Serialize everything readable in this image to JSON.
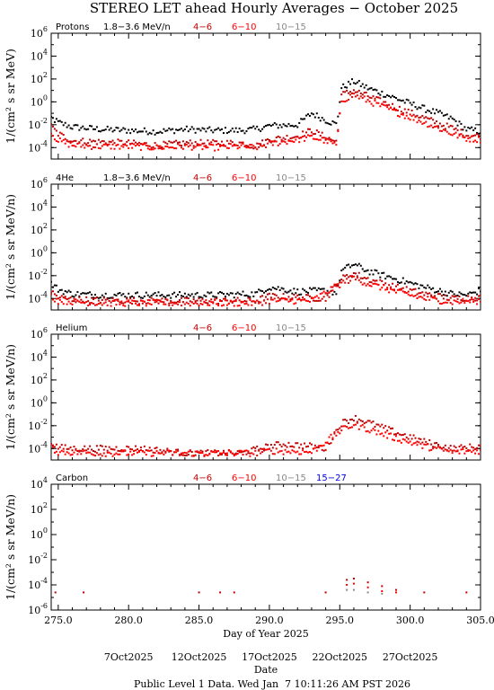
{
  "title": "STEREO LET ahead Hourly Averages − October 2025",
  "colors": {
    "c1": "#000000",
    "c2": "#c00000",
    "c3": "#ff0000",
    "c4": "#888888",
    "c5": "#0000dd"
  },
  "chart_data": [
    {
      "type": "scatter",
      "species": "Protons",
      "legend": [
        {
          "label": "1.8−3.6 MeV/n",
          "color": "#000000"
        },
        {
          "label": "4−6",
          "color": "#c00000"
        },
        {
          "label": "6−10",
          "color": "#ff0000"
        },
        {
          "label": "10−15",
          "color": "#888888"
        }
      ],
      "ylabel": "1/(cm² s sr MeV)",
      "ylim_log10": [
        -5,
        6
      ],
      "yticks": [
        {
          "e": "-4",
          "v": -4
        },
        {
          "e": "-2",
          "v": -2
        },
        {
          "e": "0",
          "v": 0
        },
        {
          "e": "2",
          "v": 2
        },
        {
          "e": "4",
          "v": 4
        },
        {
          "e": "6",
          "v": 6
        }
      ],
      "series": [
        {
          "key": "c1",
          "pts": [
            [
              274,
              -1.0
            ],
            [
              275,
              -1.8
            ],
            [
              276,
              -2.2
            ],
            [
              278,
              -2.4
            ],
            [
              280,
              -2.5
            ],
            [
              282,
              -2.6
            ],
            [
              284,
              -2.4
            ],
            [
              286,
              -2.5
            ],
            [
              288,
              -2.5
            ],
            [
              289,
              -2.4
            ],
            [
              290,
              -2.1
            ],
            [
              292,
              -2.0
            ],
            [
              293,
              -1.0
            ],
            [
              294,
              -1.6
            ],
            [
              294.8,
              -2.0
            ],
            [
              295.1,
              1.2
            ],
            [
              296,
              1.8
            ],
            [
              297,
              1.2
            ],
            [
              299,
              0.3
            ],
            [
              301,
              -0.6
            ],
            [
              302,
              -1.0
            ],
            [
              303,
              -1.5
            ],
            [
              304,
              -2.4
            ],
            [
              305,
              -2.6
            ]
          ]
        },
        {
          "key": "c2",
          "pts": [
            [
              274,
              -1.5
            ],
            [
              275,
              -2.8
            ],
            [
              276,
              -3.4
            ],
            [
              278,
              -3.5
            ],
            [
              280,
              -3.6
            ],
            [
              282,
              -3.8
            ],
            [
              284,
              -3.6
            ],
            [
              286,
              -3.6
            ],
            [
              288,
              -3.6
            ],
            [
              289,
              -3.9
            ],
            [
              290,
              -3.3
            ],
            [
              292,
              -3.0
            ],
            [
              293,
              -2.5
            ],
            [
              294,
              -3.1
            ],
            [
              294.8,
              -3.5
            ],
            [
              295.1,
              0.6
            ],
            [
              296,
              1.0
            ],
            [
              297,
              0.5
            ],
            [
              299,
              -0.5
            ],
            [
              301,
              -1.4
            ],
            [
              302,
              -1.9
            ],
            [
              303,
              -2.3
            ],
            [
              304,
              -2.9
            ],
            [
              305,
              -3.0
            ]
          ]
        },
        {
          "key": "c3",
          "pts": [
            [
              274,
              -2.0
            ],
            [
              275,
              -3.4
            ],
            [
              276,
              -3.8
            ],
            [
              278,
              -3.9
            ],
            [
              280,
              -3.9
            ],
            [
              282,
              -4.0
            ],
            [
              284,
              -3.9
            ],
            [
              286,
              -4.0
            ],
            [
              288,
              -3.9
            ],
            [
              289,
              -4.0
            ],
            [
              290,
              -3.7
            ],
            [
              292,
              -3.3
            ],
            [
              293,
              -3.1
            ],
            [
              294,
              -3.4
            ],
            [
              294.8,
              -3.8
            ],
            [
              295.1,
              0.1
            ],
            [
              296,
              0.6
            ],
            [
              297,
              0.1
            ],
            [
              299,
              -0.9
            ],
            [
              301,
              -1.8
            ],
            [
              302,
              -2.3
            ],
            [
              303,
              -2.8
            ],
            [
              304,
              -3.2
            ],
            [
              305,
              -3.3
            ]
          ]
        }
      ]
    },
    {
      "type": "scatter",
      "species": "4He",
      "legend": [
        {
          "label": "1.8−3.6 MeV/n",
          "color": "#000000"
        },
        {
          "label": "4−6",
          "color": "#c00000"
        },
        {
          "label": "6−10",
          "color": "#ff0000"
        },
        {
          "label": "10−15",
          "color": "#888888"
        }
      ],
      "ylabel": "1/(cm² s sr MeV/n)",
      "ylim_log10": [
        -5,
        6
      ],
      "yticks": [
        {
          "e": "-4",
          "v": -4
        },
        {
          "e": "-2",
          "v": -2
        },
        {
          "e": "0",
          "v": 0
        },
        {
          "e": "2",
          "v": 2
        },
        {
          "e": "4",
          "v": 4
        },
        {
          "e": "6",
          "v": 6
        }
      ],
      "series": [
        {
          "key": "c1",
          "pts": [
            [
              274,
              -2.2
            ],
            [
              275,
              -3.2
            ],
            [
              276,
              -3.6
            ],
            [
              278,
              -3.7
            ],
            [
              280,
              -3.7
            ],
            [
              283,
              -3.7
            ],
            [
              286,
              -3.7
            ],
            [
              289,
              -3.6
            ],
            [
              290,
              -3.0
            ],
            [
              292,
              -3.4
            ],
            [
              294,
              -3.3
            ],
            [
              294.8,
              -3.5
            ],
            [
              295.1,
              -1.6
            ],
            [
              296,
              -1.0
            ],
            [
              297,
              -1.6
            ],
            [
              299,
              -2.3
            ],
            [
              301,
              -3.0
            ],
            [
              303,
              -3.6
            ],
            [
              304,
              -3.7
            ],
            [
              305,
              -3.3
            ]
          ]
        },
        {
          "key": "c2",
          "pts": [
            [
              274,
              -2.9
            ],
            [
              275,
              -3.9
            ],
            [
              276,
              -4.1
            ],
            [
              280,
              -4.2
            ],
            [
              285,
              -4.2
            ],
            [
              289,
              -4.2
            ],
            [
              290,
              -3.8
            ],
            [
              292,
              -3.9
            ],
            [
              294,
              -4.0
            ],
            [
              295.1,
              -2.3
            ],
            [
              296,
              -1.8
            ],
            [
              297,
              -2.3
            ],
            [
              299,
              -3.0
            ],
            [
              301,
              -3.6
            ],
            [
              303,
              -4.0
            ],
            [
              305,
              -3.9
            ]
          ]
        },
        {
          "key": "c3",
          "pts": [
            [
              274,
              -3.4
            ],
            [
              275,
              -4.2
            ],
            [
              278,
              -4.4
            ],
            [
              285,
              -4.4
            ],
            [
              289,
              -4.4
            ],
            [
              290,
              -4.2
            ],
            [
              293,
              -4.2
            ],
            [
              295.1,
              -2.7
            ],
            [
              296,
              -2.2
            ],
            [
              297,
              -2.7
            ],
            [
              299,
              -3.4
            ],
            [
              301,
              -4.0
            ],
            [
              303,
              -4.3
            ],
            [
              305,
              -4.2
            ]
          ]
        }
      ]
    },
    {
      "type": "scatter",
      "species": "Helium",
      "legend": [
        {
          "label": "4−6",
          "color": "#c00000"
        },
        {
          "label": "6−10",
          "color": "#ff0000"
        },
        {
          "label": "10−15",
          "color": "#888888"
        }
      ],
      "ylabel": "1/(cm² s sr MeV/n)",
      "ylim_log10": [
        -5,
        6
      ],
      "yticks": [
        {
          "e": "-4",
          "v": -4
        },
        {
          "e": "-2",
          "v": -2
        },
        {
          "e": "0",
          "v": 0
        },
        {
          "e": "2",
          "v": 2
        },
        {
          "e": "4",
          "v": 4
        },
        {
          "e": "6",
          "v": 6
        }
      ],
      "series": [
        {
          "key": "c2",
          "pts": [
            [
              274,
              -3.0
            ],
            [
              275,
              -3.9
            ],
            [
              276,
              -4.0
            ],
            [
              278,
              -4.0
            ],
            [
              281,
              -4.0
            ],
            [
              284,
              -4.4
            ],
            [
              288,
              -4.4
            ],
            [
              289,
              -4.1
            ],
            [
              290,
              -3.8
            ],
            [
              291,
              -3.6
            ],
            [
              293,
              -3.8
            ],
            [
              294,
              -4.0
            ],
            [
              295.1,
              -1.8
            ],
            [
              296,
              -1.3
            ],
            [
              297,
              -1.7
            ],
            [
              299,
              -2.6
            ],
            [
              301,
              -3.4
            ],
            [
              303,
              -4.0
            ],
            [
              305,
              -3.8
            ]
          ]
        },
        {
          "key": "c3",
          "pts": [
            [
              274,
              -3.5
            ],
            [
              275,
              -4.3
            ],
            [
              278,
              -4.4
            ],
            [
              283,
              -4.4
            ],
            [
              289,
              -4.4
            ],
            [
              290,
              -4.2
            ],
            [
              293,
              -4.3
            ],
            [
              295.1,
              -2.4
            ],
            [
              296,
              -1.9
            ],
            [
              297,
              -2.3
            ],
            [
              299,
              -3.1
            ],
            [
              301,
              -3.8
            ],
            [
              303,
              -4.3
            ],
            [
              305,
              -4.2
            ]
          ]
        }
      ]
    },
    {
      "type": "scatter",
      "species": "Carbon",
      "legend": [
        {
          "label": "4−6",
          "color": "#c00000"
        },
        {
          "label": "6−10",
          "color": "#ff0000"
        },
        {
          "label": "10−15",
          "color": "#888888"
        },
        {
          "label": "15−27",
          "color": "#0000dd"
        }
      ],
      "ylabel": "1/(cm² s sr MeV/n)",
      "ylim_log10": [
        -6,
        4
      ],
      "yticks": [
        {
          "e": "-6",
          "v": -6
        },
        {
          "e": "-4",
          "v": -4
        },
        {
          "e": "-2",
          "v": -2
        },
        {
          "e": "0",
          "v": 0
        },
        {
          "e": "2",
          "v": 2
        },
        {
          "e": "4",
          "v": 4
        }
      ],
      "series": [
        {
          "key": "c2",
          "pts": [
            [
              274.8,
              -4.6
            ],
            [
              276.8,
              -4.6
            ],
            [
              285,
              -4.6
            ],
            [
              286.5,
              -4.6
            ],
            [
              287.5,
              -4.6
            ],
            [
              294,
              -4.6
            ],
            [
              295.5,
              -3.6
            ],
            [
              296,
              -3.5
            ],
            [
              297,
              -3.8
            ],
            [
              298,
              -4.1
            ],
            [
              299,
              -4.4
            ],
            [
              301,
              -4.6
            ],
            [
              304,
              -4.6
            ]
          ]
        },
        {
          "key": "c3",
          "pts": [
            [
              295.5,
              -4.0
            ],
            [
              296,
              -3.9
            ],
            [
              297,
              -4.2
            ],
            [
              298,
              -4.5
            ],
            [
              299,
              -4.6
            ]
          ]
        },
        {
          "key": "c4",
          "pts": [
            [
              295.5,
              -4.4
            ],
            [
              296,
              -4.4
            ],
            [
              297,
              -4.6
            ],
            [
              298,
              -4.7
            ]
          ]
        }
      ]
    }
  ],
  "x_axis": {
    "xlim": [
      274.5,
      305.0
    ],
    "ticks": [
      {
        "v": 275,
        "label": "275.0"
      },
      {
        "v": 280,
        "label": "280.0"
      },
      {
        "v": 285,
        "label": "285.0"
      },
      {
        "v": 290,
        "label": "290.0"
      },
      {
        "v": 295,
        "label": "295.0"
      },
      {
        "v": 300,
        "label": "300.0"
      },
      {
        "v": 305,
        "label": "305.0"
      }
    ],
    "label": "Day of Year 2025",
    "dates": [
      {
        "v": 280,
        "label": "7Oct2025"
      },
      {
        "v": 285,
        "label": "12Oct2025"
      },
      {
        "v": 290,
        "label": "17Oct2025"
      },
      {
        "v": 295,
        "label": "22Oct2025"
      },
      {
        "v": 300,
        "label": "27Oct2025"
      }
    ],
    "date_label": "Date"
  },
  "footer": "Public Level 1 Data. Wed Jan  7 10:11:26 AM PST 2026"
}
